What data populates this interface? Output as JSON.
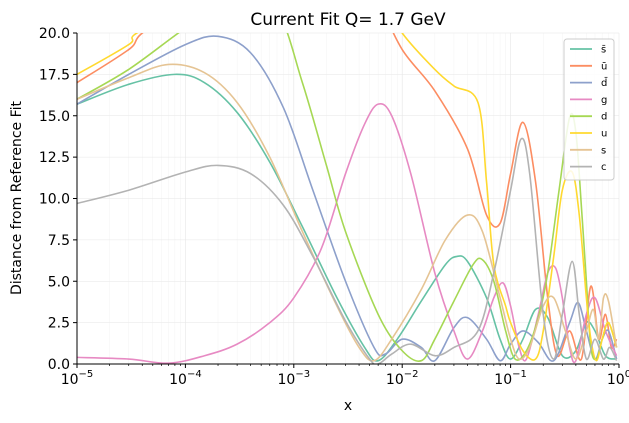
{
  "chart_data": {
    "type": "line",
    "title": "Current Fit Q= 1.7 GeV",
    "xlabel": "x",
    "ylabel": "Distance from Reference Fit",
    "xscale": "log",
    "xlim": [
      1e-05,
      1.0
    ],
    "ylim": [
      0,
      20
    ],
    "x_ticks": [
      {
        "value": 1e-05,
        "base": "10",
        "exp": "−5"
      },
      {
        "value": 0.0001,
        "base": "10",
        "exp": "−4"
      },
      {
        "value": 0.001,
        "base": "10",
        "exp": "−3"
      },
      {
        "value": 0.01,
        "base": "10",
        "exp": "−2"
      },
      {
        "value": 0.1,
        "base": "10",
        "exp": "−1"
      },
      {
        "value": 1.0,
        "base": "10",
        "exp": "0"
      }
    ],
    "y_ticks": [
      {
        "value": 0,
        "label": "0.0"
      },
      {
        "value": 2.5,
        "label": "2.5"
      },
      {
        "value": 5,
        "label": "5.0"
      },
      {
        "value": 7.5,
        "label": "7.5"
      },
      {
        "value": 10,
        "label": "10.0"
      },
      {
        "value": 12.5,
        "label": "12.5"
      },
      {
        "value": 15,
        "label": "15.0"
      },
      {
        "value": 17.5,
        "label": "17.5"
      },
      {
        "value": 20,
        "label": "20.0"
      }
    ],
    "grid": true,
    "legend": "top-right",
    "series": [
      {
        "name": "s̄",
        "color": "#66c2a5",
        "points": [
          [
            1e-05,
            15.7
          ],
          [
            3e-05,
            16.9
          ],
          [
            8e-05,
            17.5
          ],
          [
            0.00015,
            17.0
          ],
          [
            0.0003,
            15.2
          ],
          [
            0.0006,
            12.2
          ],
          [
            0.0012,
            8.3
          ],
          [
            0.0025,
            4.0
          ],
          [
            0.0045,
            1.0
          ],
          [
            0.006,
            0.2
          ],
          [
            0.009,
            1.5
          ],
          [
            0.015,
            3.8
          ],
          [
            0.025,
            6.0
          ],
          [
            0.032,
            6.5
          ],
          [
            0.04,
            6.2
          ],
          [
            0.06,
            4.0
          ],
          [
            0.08,
            1.5
          ],
          [
            0.1,
            0.3
          ],
          [
            0.13,
            1.5
          ],
          [
            0.17,
            3.3
          ],
          [
            0.22,
            2.8
          ],
          [
            0.3,
            0.5
          ],
          [
            0.4,
            0.8
          ],
          [
            0.5,
            2.5
          ],
          [
            0.6,
            2.0
          ],
          [
            0.75,
            0.5
          ],
          [
            0.95,
            0.3
          ]
        ]
      },
      {
        "name": "ū",
        "color": "#fc8d62",
        "points": [
          [
            1e-05,
            17.0
          ],
          [
            3e-05,
            19.0
          ],
          [
            6e-05,
            20.7
          ],
          [
            0.003,
            26.0
          ],
          [
            0.006,
            22.0
          ],
          [
            0.01,
            19.0
          ],
          [
            0.02,
            16.5
          ],
          [
            0.04,
            13.0
          ],
          [
            0.06,
            9.0
          ],
          [
            0.08,
            8.5
          ],
          [
            0.1,
            11.5
          ],
          [
            0.13,
            14.6
          ],
          [
            0.17,
            11.0
          ],
          [
            0.22,
            4.0
          ],
          [
            0.27,
            0.5
          ],
          [
            0.35,
            2.0
          ],
          [
            0.45,
            0.3
          ],
          [
            0.55,
            4.7
          ],
          [
            0.65,
            1.5
          ],
          [
            0.75,
            3.0
          ],
          [
            0.85,
            1.0
          ],
          [
            0.95,
            1.5
          ]
        ]
      },
      {
        "name": "d̄",
        "color": "#8da0cb",
        "points": [
          [
            1e-05,
            15.7
          ],
          [
            3e-05,
            17.5
          ],
          [
            0.0001,
            19.3
          ],
          [
            0.0002,
            19.8
          ],
          [
            0.0004,
            18.8
          ],
          [
            0.0008,
            15.5
          ],
          [
            0.0015,
            10.5
          ],
          [
            0.003,
            5.0
          ],
          [
            0.0055,
            1.0
          ],
          [
            0.007,
            0.6
          ],
          [
            0.01,
            1.5
          ],
          [
            0.015,
            1.0
          ],
          [
            0.02,
            0.2
          ],
          [
            0.03,
            2.2
          ],
          [
            0.04,
            2.8
          ],
          [
            0.06,
            1.5
          ],
          [
            0.08,
            0.2
          ],
          [
            0.1,
            1.2
          ],
          [
            0.13,
            2.0
          ],
          [
            0.18,
            1.3
          ],
          [
            0.25,
            0.2
          ],
          [
            0.35,
            2.5
          ],
          [
            0.42,
            3.7
          ],
          [
            0.5,
            2.0
          ],
          [
            0.6,
            0.3
          ],
          [
            0.7,
            1.5
          ],
          [
            0.8,
            2.0
          ],
          [
            0.95,
            0.3
          ]
        ]
      },
      {
        "name": "g",
        "color": "#e78ac3",
        "points": [
          [
            1e-05,
            0.4
          ],
          [
            3e-05,
            0.3
          ],
          [
            7e-05,
            0.05
          ],
          [
            0.00015,
            0.5
          ],
          [
            0.0003,
            1.2
          ],
          [
            0.0006,
            2.5
          ],
          [
            0.001,
            4.0
          ],
          [
            0.0018,
            7.0
          ],
          [
            0.003,
            11.5
          ],
          [
            0.0045,
            14.5
          ],
          [
            0.006,
            15.7
          ],
          [
            0.008,
            15.0
          ],
          [
            0.012,
            11.5
          ],
          [
            0.02,
            5.5
          ],
          [
            0.03,
            2.0
          ],
          [
            0.04,
            0.3
          ],
          [
            0.055,
            2.0
          ],
          [
            0.07,
            4.0
          ],
          [
            0.085,
            4.9
          ],
          [
            0.1,
            3.5
          ],
          [
            0.12,
            1.0
          ],
          [
            0.14,
            0.3
          ],
          [
            0.18,
            3.0
          ],
          [
            0.22,
            5.5
          ],
          [
            0.26,
            5.8
          ],
          [
            0.3,
            4.0
          ],
          [
            0.35,
            1.0
          ],
          [
            0.4,
            0.2
          ],
          [
            0.5,
            3.0
          ],
          [
            0.6,
            4.0
          ],
          [
            0.75,
            2.0
          ],
          [
            0.95,
            0.5
          ]
        ]
      },
      {
        "name": "d",
        "color": "#a6d854",
        "points": [
          [
            1e-05,
            16.0
          ],
          [
            3e-05,
            17.8
          ],
          [
            0.0001,
            20.3
          ],
          [
            0.0003,
            22.3
          ],
          [
            0.0007,
            21.3
          ],
          [
            0.0012,
            17.0
          ],
          [
            0.002,
            12.0
          ],
          [
            0.003,
            8.0
          ],
          [
            0.006,
            3.0
          ],
          [
            0.01,
            0.8
          ],
          [
            0.015,
            0.2
          ],
          [
            0.02,
            1.5
          ],
          [
            0.03,
            3.8
          ],
          [
            0.045,
            6.0
          ],
          [
            0.055,
            6.3
          ],
          [
            0.07,
            5.0
          ],
          [
            0.09,
            2.0
          ],
          [
            0.11,
            0.3
          ],
          [
            0.14,
            0.8
          ],
          [
            0.18,
            2.8
          ],
          [
            0.22,
            5.5
          ],
          [
            0.28,
            10.5
          ],
          [
            0.35,
            14.9
          ],
          [
            0.4,
            14.0
          ],
          [
            0.45,
            9.5
          ],
          [
            0.5,
            5.0
          ],
          [
            0.55,
            1.0
          ],
          [
            0.62,
            0.3
          ],
          [
            0.7,
            1.5
          ],
          [
            0.8,
            2.5
          ],
          [
            0.95,
            1.0
          ]
        ]
      },
      {
        "name": "u",
        "color": "#ffd92f",
        "points": [
          [
            1e-05,
            17.5
          ],
          [
            3e-05,
            19.3
          ],
          [
            5e-05,
            20.5
          ],
          [
            0.003,
            25.5
          ],
          [
            0.006,
            22.5
          ],
          [
            0.01,
            20.0
          ],
          [
            0.02,
            17.8
          ],
          [
            0.03,
            16.8
          ],
          [
            0.05,
            15.8
          ],
          [
            0.06,
            11.0
          ],
          [
            0.07,
            6.0
          ],
          [
            0.09,
            3.5
          ],
          [
            0.1,
            2.5
          ],
          [
            0.13,
            0.8
          ],
          [
            0.17,
            0.3
          ],
          [
            0.2,
            2.0
          ],
          [
            0.25,
            6.5
          ],
          [
            0.3,
            10.5
          ],
          [
            0.37,
            11.6
          ],
          [
            0.43,
            9.0
          ],
          [
            0.5,
            4.0
          ],
          [
            0.55,
            1.5
          ],
          [
            0.62,
            0.2
          ],
          [
            0.7,
            1.5
          ],
          [
            0.8,
            2.5
          ],
          [
            0.95,
            1.0
          ]
        ]
      },
      {
        "name": "s",
        "color": "#e5c494",
        "points": [
          [
            1e-05,
            16.0
          ],
          [
            3e-05,
            17.3
          ],
          [
            7e-05,
            18.1
          ],
          [
            0.00015,
            17.6
          ],
          [
            0.0003,
            15.8
          ],
          [
            0.0006,
            12.5
          ],
          [
            0.0012,
            8.0
          ],
          [
            0.0025,
            3.5
          ],
          [
            0.004,
            1.0
          ],
          [
            0.0055,
            0.2
          ],
          [
            0.008,
            1.5
          ],
          [
            0.015,
            4.5
          ],
          [
            0.025,
            7.5
          ],
          [
            0.04,
            9.0
          ],
          [
            0.055,
            8.0
          ],
          [
            0.08,
            4.0
          ],
          [
            0.1,
            1.5
          ],
          [
            0.12,
            0.3
          ],
          [
            0.15,
            1.0
          ],
          [
            0.2,
            3.5
          ],
          [
            0.25,
            4.0
          ],
          [
            0.32,
            2.0
          ],
          [
            0.4,
            0.3
          ],
          [
            0.5,
            2.0
          ],
          [
            0.58,
            3.3
          ],
          [
            0.65,
            1.5
          ],
          [
            0.72,
            4.0
          ],
          [
            0.8,
            3.8
          ],
          [
            0.95,
            1.0
          ]
        ]
      },
      {
        "name": "c",
        "color": "#b3b3b3",
        "points": [
          [
            1e-05,
            9.7
          ],
          [
            3e-05,
            10.5
          ],
          [
            0.0001,
            11.6
          ],
          [
            0.0002,
            12.0
          ],
          [
            0.0004,
            11.5
          ],
          [
            0.0008,
            9.6
          ],
          [
            0.0015,
            6.5
          ],
          [
            0.003,
            2.6
          ],
          [
            0.005,
            0.3
          ],
          [
            0.006,
            0.0
          ],
          [
            0.008,
            0.6
          ],
          [
            0.012,
            1.2
          ],
          [
            0.02,
            0.5
          ],
          [
            0.03,
            1.0
          ],
          [
            0.05,
            2.0
          ],
          [
            0.07,
            5.5
          ],
          [
            0.1,
            10.5
          ],
          [
            0.125,
            13.6
          ],
          [
            0.15,
            11.5
          ],
          [
            0.2,
            3.0
          ],
          [
            0.25,
            0.3
          ],
          [
            0.3,
            3.0
          ],
          [
            0.37,
            6.2
          ],
          [
            0.43,
            3.0
          ],
          [
            0.5,
            0.3
          ],
          [
            0.6,
            1.5
          ],
          [
            0.72,
            0.3
          ],
          [
            0.82,
            1.0
          ],
          [
            0.95,
            0.2
          ]
        ]
      }
    ]
  }
}
